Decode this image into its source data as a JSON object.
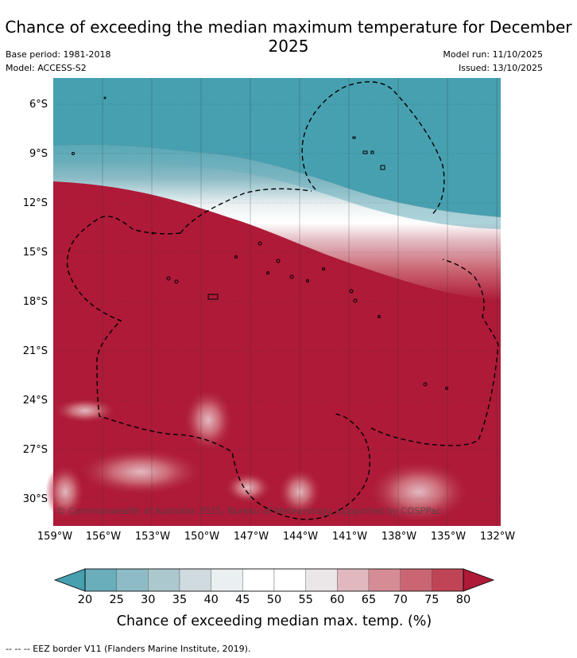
{
  "title": "Chance of exceeding the median maximum temperature for December 2025",
  "meta": {
    "base_period": "Base period: 1981-2018",
    "model": "Model: ACCESS-S2",
    "model_run": "Model run: 11/10/2025",
    "issued": "Issued: 13/10/2025"
  },
  "axes": {
    "lat_labels": [
      "6°S",
      "9°S",
      "12°S",
      "15°S",
      "18°S",
      "21°S",
      "24°S",
      "27°S",
      "30°S"
    ],
    "lon_labels": [
      "159°W",
      "156°W",
      "153°W",
      "150°W",
      "147°W",
      "144°W",
      "141°W",
      "138°W",
      "135°W",
      "132°W"
    ]
  },
  "copyright": "© Commonwealth of Australia 2025, Bureau of Meteorology, supported by COSPPac",
  "colorbar": {
    "ticks": [
      "20",
      "25",
      "30",
      "35",
      "40",
      "45",
      "50",
      "55",
      "60",
      "65",
      "70",
      "75",
      "80"
    ],
    "colors": [
      "#46a0b0",
      "#6aaebb",
      "#8ebcc6",
      "#aac8ce",
      "#cfdbdf",
      "#eaf0f2",
      "#ffffff",
      "#ffffff",
      "#ebe7e8",
      "#e2b8bf",
      "#d68c95",
      "#ca6673",
      "#bf4455",
      "#ae1a38"
    ],
    "title": "Chance of exceeding median max. temp. (%)"
  },
  "legend": "--  --  -- EEZ border V11 (Flanders Marine Institute, 2019)."
}
